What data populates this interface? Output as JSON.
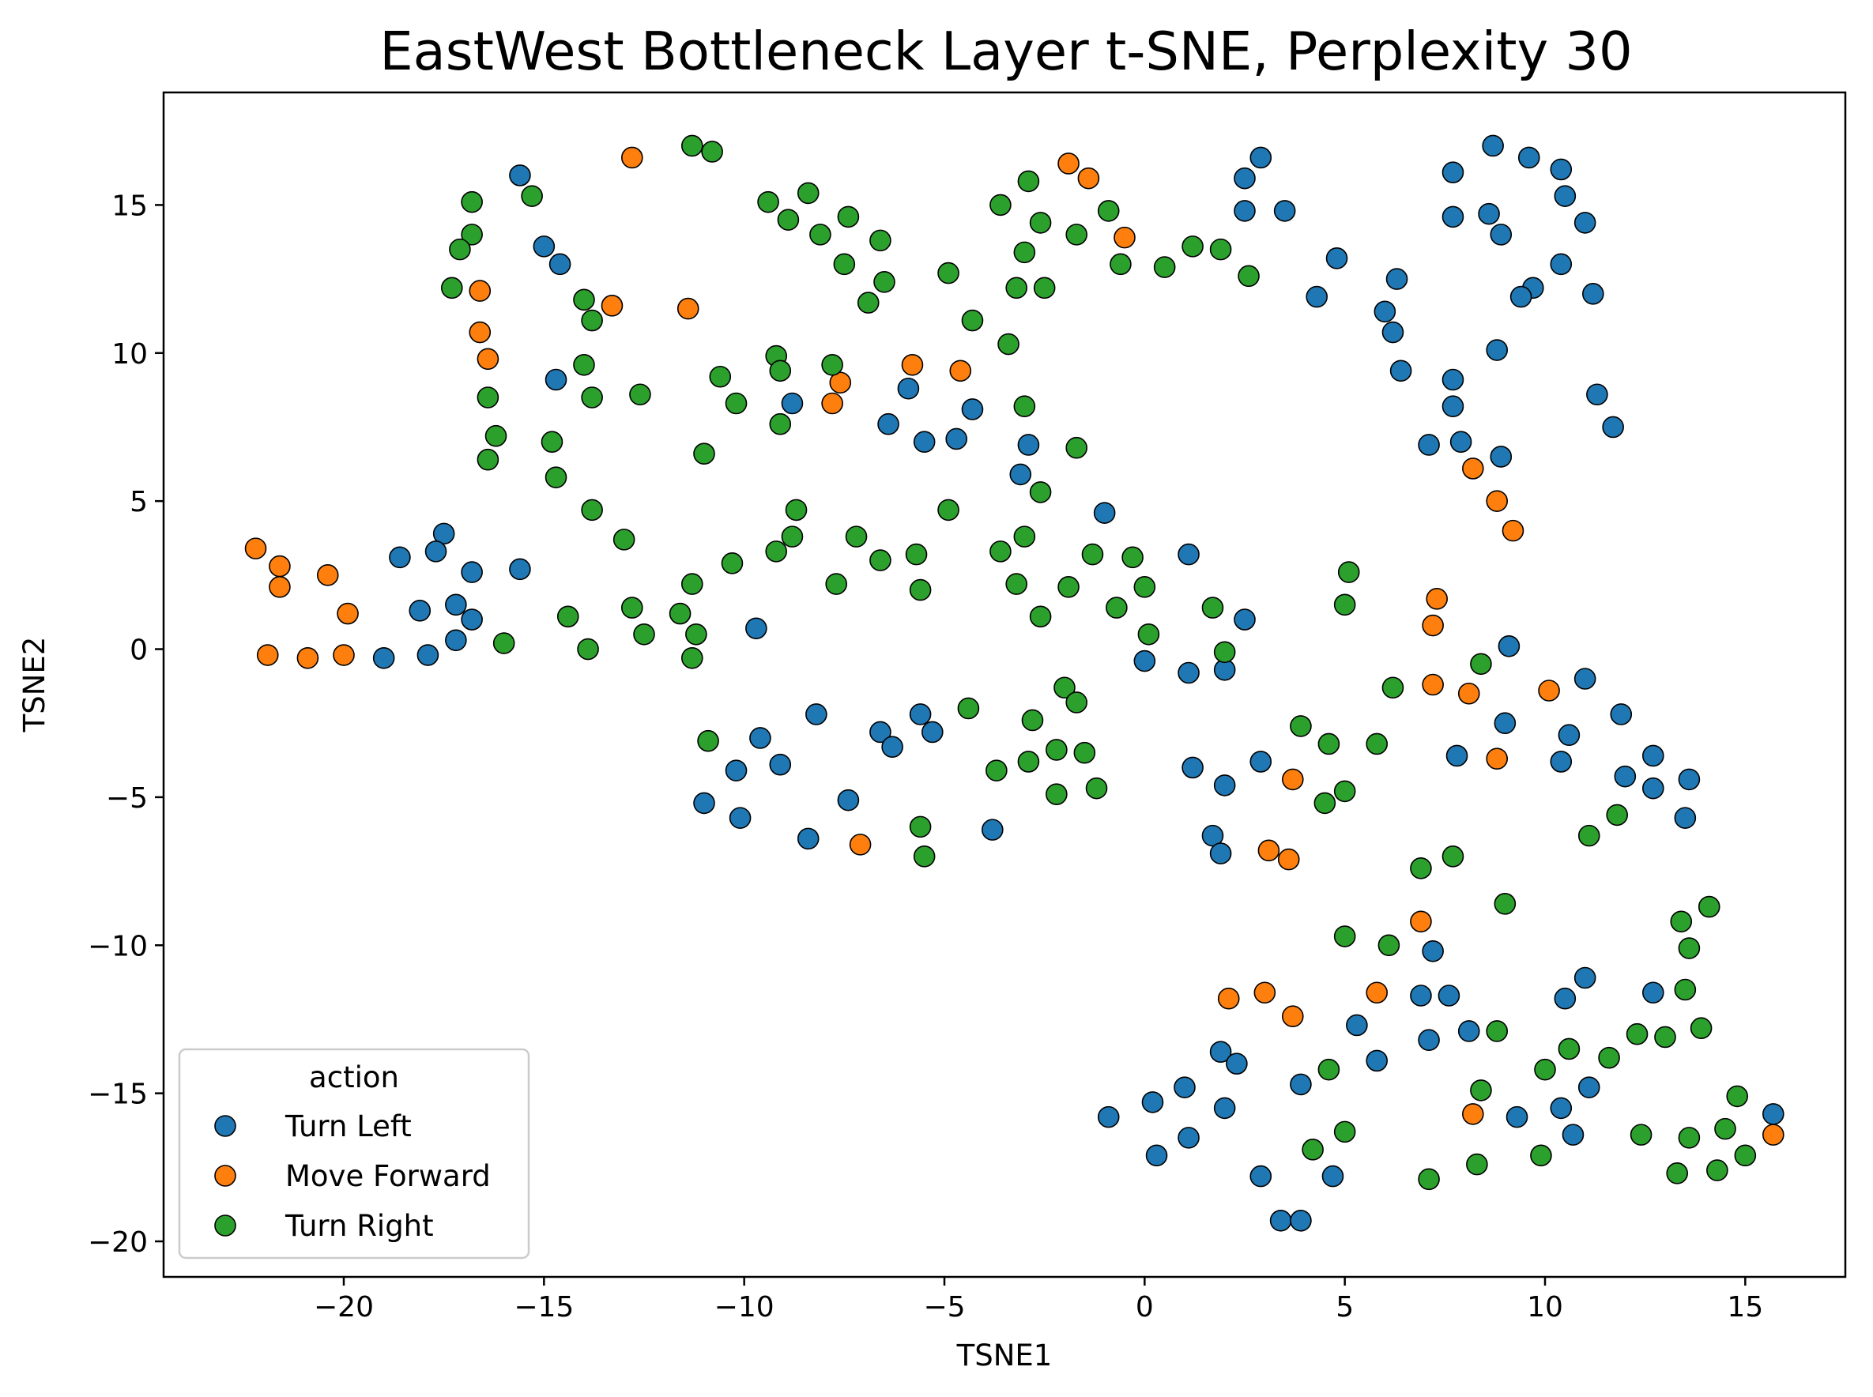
{
  "chart_data": {
    "type": "scatter",
    "title": "EastWest Bottleneck Layer t-SNE, Perplexity 30",
    "xlabel": "TSNE1",
    "ylabel": "TSNE2",
    "xlim": [
      -24.5,
      17.5
    ],
    "ylim": [
      -21.2,
      18.8
    ],
    "xticks": [
      -20,
      -15,
      -10,
      -5,
      0,
      5,
      10,
      15
    ],
    "yticks": [
      -20,
      -15,
      -10,
      -5,
      0,
      5,
      10,
      15
    ],
    "xtick_labels": [
      "−20",
      "−15",
      "−10",
      "−5",
      "0",
      "5",
      "10",
      "15"
    ],
    "ytick_labels": [
      "−20",
      "−15",
      "−10",
      "−5",
      "0",
      "5",
      "10",
      "15"
    ],
    "grid": false,
    "legend": {
      "title": "action",
      "position": "lower-left"
    },
    "series": [
      {
        "name": "Turn Left",
        "color": "#1f77b4",
        "points": [
          [
            -15.6,
            16.0
          ],
          [
            -15.0,
            13.6
          ],
          [
            -14.6,
            13.0
          ],
          [
            -14.7,
            9.1
          ],
          [
            -17.5,
            3.9
          ],
          [
            -18.6,
            3.1
          ],
          [
            -17.7,
            3.3
          ],
          [
            -16.8,
            2.6
          ],
          [
            -15.6,
            2.7
          ],
          [
            -18.1,
            1.3
          ],
          [
            -17.2,
            1.5
          ],
          [
            -16.8,
            1.0
          ],
          [
            -17.2,
            0.3
          ],
          [
            -19.0,
            -0.3
          ],
          [
            -17.9,
            -0.2
          ],
          [
            -5.9,
            8.8
          ],
          [
            -6.4,
            7.6
          ],
          [
            -5.5,
            7.0
          ],
          [
            -4.7,
            7.1
          ],
          [
            -4.3,
            8.1
          ],
          [
            -8.8,
            8.3
          ],
          [
            -9.7,
            0.7
          ],
          [
            -8.2,
            -2.2
          ],
          [
            -9.6,
            -3.0
          ],
          [
            -10.2,
            -4.1
          ],
          [
            -9.1,
            -3.9
          ],
          [
            -11.0,
            -5.2
          ],
          [
            -10.1,
            -5.7
          ],
          [
            -8.4,
            -6.4
          ],
          [
            -7.4,
            -5.1
          ],
          [
            -6.6,
            -2.8
          ],
          [
            -6.3,
            -3.3
          ],
          [
            -5.6,
            -2.2
          ],
          [
            -5.3,
            -2.8
          ],
          [
            -3.8,
            -6.1
          ],
          [
            -3.1,
            5.9
          ],
          [
            -2.9,
            6.9
          ],
          [
            -1.0,
            4.6
          ],
          [
            1.1,
            3.2
          ],
          [
            2.0,
            -0.7
          ],
          [
            1.1,
            -0.8
          ],
          [
            0.0,
            -0.4
          ],
          [
            2.5,
            1.0
          ],
          [
            1.2,
            -4.0
          ],
          [
            2.0,
            -4.6
          ],
          [
            2.9,
            -3.8
          ],
          [
            1.7,
            -6.3
          ],
          [
            1.9,
            -6.9
          ],
          [
            2.5,
            15.9
          ],
          [
            2.9,
            16.6
          ],
          [
            3.5,
            14.8
          ],
          [
            2.5,
            14.8
          ],
          [
            4.3,
            11.9
          ],
          [
            4.8,
            13.2
          ],
          [
            6.0,
            11.4
          ],
          [
            6.3,
            12.5
          ],
          [
            6.2,
            10.7
          ],
          [
            6.4,
            9.4
          ],
          [
            7.7,
            16.1
          ],
          [
            7.7,
            14.6
          ],
          [
            8.7,
            17.0
          ],
          [
            9.6,
            16.6
          ],
          [
            10.4,
            16.2
          ],
          [
            8.6,
            14.7
          ],
          [
            8.9,
            14.0
          ],
          [
            10.5,
            15.3
          ],
          [
            10.4,
            13.0
          ],
          [
            11.0,
            14.4
          ],
          [
            9.7,
            12.2
          ],
          [
            9.4,
            11.9
          ],
          [
            11.2,
            12.0
          ],
          [
            8.8,
            10.1
          ],
          [
            11.3,
            8.6
          ],
          [
            11.7,
            7.5
          ],
          [
            7.7,
            9.1
          ],
          [
            7.7,
            8.2
          ],
          [
            7.1,
            6.9
          ],
          [
            7.9,
            7.0
          ],
          [
            8.9,
            6.5
          ],
          [
            9.1,
            0.1
          ],
          [
            9.0,
            -2.5
          ],
          [
            11.0,
            -1.0
          ],
          [
            10.6,
            -2.9
          ],
          [
            10.4,
            -3.8
          ],
          [
            11.9,
            -2.2
          ],
          [
            12.0,
            -4.3
          ],
          [
            12.7,
            -3.6
          ],
          [
            12.7,
            -4.7
          ],
          [
            13.6,
            -4.4
          ],
          [
            13.5,
            -5.7
          ],
          [
            7.8,
            -3.6
          ],
          [
            7.2,
            -10.2
          ],
          [
            6.9,
            -11.7
          ],
          [
            7.6,
            -11.7
          ],
          [
            7.1,
            -13.2
          ],
          [
            8.1,
            -12.9
          ],
          [
            5.8,
            -13.9
          ],
          [
            5.3,
            -12.7
          ],
          [
            10.5,
            -11.8
          ],
          [
            11.0,
            -11.1
          ],
          [
            12.7,
            -11.6
          ],
          [
            11.1,
            -14.8
          ],
          [
            10.4,
            -15.5
          ],
          [
            9.3,
            -15.8
          ],
          [
            10.7,
            -16.4
          ],
          [
            15.7,
            -15.7
          ],
          [
            -0.9,
            -15.8
          ],
          [
            0.2,
            -15.3
          ],
          [
            1.0,
            -14.8
          ],
          [
            1.1,
            -16.5
          ],
          [
            0.3,
            -17.1
          ],
          [
            1.9,
            -13.6
          ],
          [
            2.3,
            -14.0
          ],
          [
            2.0,
            -15.5
          ],
          [
            3.9,
            -14.7
          ],
          [
            2.9,
            -17.8
          ],
          [
            4.7,
            -17.8
          ],
          [
            3.4,
            -19.3
          ],
          [
            3.9,
            -19.3
          ]
        ]
      },
      {
        "name": "Move Forward",
        "color": "#ff7f0e",
        "points": [
          [
            -12.8,
            16.6
          ],
          [
            -11.4,
            11.5
          ],
          [
            -13.3,
            11.6
          ],
          [
            -16.6,
            12.1
          ],
          [
            -16.6,
            10.7
          ],
          [
            -16.4,
            9.8
          ],
          [
            -1.9,
            16.4
          ],
          [
            -1.4,
            15.9
          ],
          [
            -0.5,
            13.9
          ],
          [
            -5.8,
            9.6
          ],
          [
            -4.6,
            9.4
          ],
          [
            -7.6,
            9.0
          ],
          [
            -7.8,
            8.3
          ],
          [
            -22.2,
            3.4
          ],
          [
            -21.6,
            2.8
          ],
          [
            -21.6,
            2.1
          ],
          [
            -20.4,
            2.5
          ],
          [
            -19.9,
            1.2
          ],
          [
            -21.9,
            -0.2
          ],
          [
            -20.9,
            -0.3
          ],
          [
            -20.0,
            -0.2
          ],
          [
            -7.1,
            -6.6
          ],
          [
            3.1,
            -6.8
          ],
          [
            3.6,
            -7.1
          ],
          [
            3.7,
            -4.4
          ],
          [
            7.3,
            1.7
          ],
          [
            7.2,
            0.8
          ],
          [
            7.2,
            -1.2
          ],
          [
            8.1,
            -1.5
          ],
          [
            10.1,
            -1.4
          ],
          [
            8.8,
            -3.7
          ],
          [
            8.2,
            6.1
          ],
          [
            8.8,
            5.0
          ],
          [
            9.2,
            4.0
          ],
          [
            6.9,
            -9.2
          ],
          [
            5.8,
            -11.6
          ],
          [
            3.0,
            -11.6
          ],
          [
            2.1,
            -11.8
          ],
          [
            3.7,
            -12.4
          ],
          [
            8.2,
            -15.7
          ],
          [
            15.7,
            -16.4
          ]
        ]
      },
      {
        "name": "Turn Right",
        "color": "#2ca02c",
        "points": [
          [
            -11.3,
            17.0
          ],
          [
            -10.8,
            16.8
          ],
          [
            -16.8,
            15.1
          ],
          [
            -15.3,
            15.3
          ],
          [
            -16.8,
            14.0
          ],
          [
            -17.1,
            13.5
          ],
          [
            -17.3,
            12.2
          ],
          [
            -14.0,
            11.8
          ],
          [
            -13.8,
            11.1
          ],
          [
            -16.4,
            8.5
          ],
          [
            -16.2,
            7.2
          ],
          [
            -16.4,
            6.4
          ],
          [
            -14.0,
            9.6
          ],
          [
            -13.8,
            8.5
          ],
          [
            -12.6,
            8.6
          ],
          [
            -14.8,
            7.0
          ],
          [
            -14.7,
            5.8
          ],
          [
            -9.4,
            15.1
          ],
          [
            -8.9,
            14.5
          ],
          [
            -8.4,
            15.4
          ],
          [
            -8.1,
            14.0
          ],
          [
            -7.4,
            14.6
          ],
          [
            -7.5,
            13.0
          ],
          [
            -6.6,
            13.8
          ],
          [
            -6.5,
            12.4
          ],
          [
            -6.9,
            11.7
          ],
          [
            -10.6,
            9.2
          ],
          [
            -10.2,
            8.3
          ],
          [
            -9.2,
            9.9
          ],
          [
            -9.1,
            9.4
          ],
          [
            -9.1,
            7.6
          ],
          [
            -7.8,
            9.6
          ],
          [
            -11.0,
            6.6
          ],
          [
            -3.6,
            15.0
          ],
          [
            -2.9,
            15.8
          ],
          [
            -2.6,
            14.4
          ],
          [
            -3.0,
            13.4
          ],
          [
            -3.2,
            12.2
          ],
          [
            -2.5,
            12.2
          ],
          [
            -4.9,
            12.7
          ],
          [
            -4.3,
            11.1
          ],
          [
            -3.4,
            10.3
          ],
          [
            -3.0,
            8.2
          ],
          [
            -1.7,
            14.0
          ],
          [
            -0.9,
            14.8
          ],
          [
            -0.6,
            13.0
          ],
          [
            0.5,
            12.9
          ],
          [
            1.2,
            13.6
          ],
          [
            1.9,
            13.5
          ],
          [
            2.6,
            12.6
          ],
          [
            -1.7,
            6.8
          ],
          [
            -2.6,
            5.3
          ],
          [
            -4.9,
            4.7
          ],
          [
            -8.7,
            4.7
          ],
          [
            -8.8,
            3.8
          ],
          [
            -9.2,
            3.3
          ],
          [
            -7.2,
            3.8
          ],
          [
            -6.6,
            3.0
          ],
          [
            -5.7,
            3.2
          ],
          [
            -7.7,
            2.2
          ],
          [
            -5.6,
            2.0
          ],
          [
            -10.3,
            2.9
          ],
          [
            -11.3,
            2.2
          ],
          [
            -11.6,
            1.2
          ],
          [
            -11.2,
            0.5
          ],
          [
            -11.3,
            -0.3
          ],
          [
            -13.8,
            4.7
          ],
          [
            -13.0,
            3.7
          ],
          [
            -12.8,
            1.4
          ],
          [
            -12.5,
            0.5
          ],
          [
            -14.4,
            1.1
          ],
          [
            -13.9,
            0.0
          ],
          [
            -16.0,
            0.2
          ],
          [
            -3.6,
            3.3
          ],
          [
            -3.0,
            3.8
          ],
          [
            -3.2,
            2.2
          ],
          [
            -1.3,
            3.2
          ],
          [
            -0.3,
            3.1
          ],
          [
            0.0,
            2.1
          ],
          [
            -1.9,
            2.1
          ],
          [
            -2.6,
            1.1
          ],
          [
            -0.7,
            1.4
          ],
          [
            0.1,
            0.5
          ],
          [
            1.7,
            1.4
          ],
          [
            2.0,
            -0.1
          ],
          [
            5.1,
            2.6
          ],
          [
            5.0,
            1.5
          ],
          [
            8.4,
            -0.5
          ],
          [
            -10.9,
            -3.1
          ],
          [
            -4.4,
            -2.0
          ],
          [
            -3.7,
            -4.1
          ],
          [
            -2.8,
            -2.4
          ],
          [
            -2.9,
            -3.8
          ],
          [
            -2.2,
            -3.4
          ],
          [
            -2.0,
            -1.3
          ],
          [
            -1.7,
            -1.8
          ],
          [
            -1.5,
            -3.5
          ],
          [
            -1.2,
            -4.7
          ],
          [
            -2.2,
            -4.9
          ],
          [
            -5.6,
            -6.0
          ],
          [
            -5.5,
            -7.0
          ],
          [
            6.2,
            -1.3
          ],
          [
            5.8,
            -3.2
          ],
          [
            4.6,
            -3.2
          ],
          [
            3.9,
            -2.6
          ],
          [
            5.0,
            -4.8
          ],
          [
            4.5,
            -5.2
          ],
          [
            6.9,
            -7.4
          ],
          [
            7.7,
            -7.0
          ],
          [
            9.0,
            -8.6
          ],
          [
            11.1,
            -6.3
          ],
          [
            11.8,
            -5.6
          ],
          [
            5.0,
            -9.7
          ],
          [
            6.1,
            -10.0
          ],
          [
            4.6,
            -14.2
          ],
          [
            4.2,
            -16.9
          ],
          [
            5.0,
            -16.3
          ],
          [
            7.1,
            -17.9
          ],
          [
            8.4,
            -14.9
          ],
          [
            8.3,
            -17.4
          ],
          [
            8.8,
            -12.9
          ],
          [
            10.6,
            -13.5
          ],
          [
            10.0,
            -14.2
          ],
          [
            9.9,
            -17.1
          ],
          [
            11.6,
            -13.8
          ],
          [
            12.3,
            -13.0
          ],
          [
            13.0,
            -13.1
          ],
          [
            13.4,
            -9.2
          ],
          [
            14.1,
            -8.7
          ],
          [
            13.6,
            -10.1
          ],
          [
            13.5,
            -11.5
          ],
          [
            13.9,
            -12.8
          ],
          [
            12.4,
            -16.4
          ],
          [
            13.6,
            -16.5
          ],
          [
            14.5,
            -16.2
          ],
          [
            14.8,
            -15.1
          ],
          [
            15.0,
            -17.1
          ],
          [
            14.3,
            -17.6
          ],
          [
            13.3,
            -17.7
          ]
        ]
      }
    ]
  }
}
